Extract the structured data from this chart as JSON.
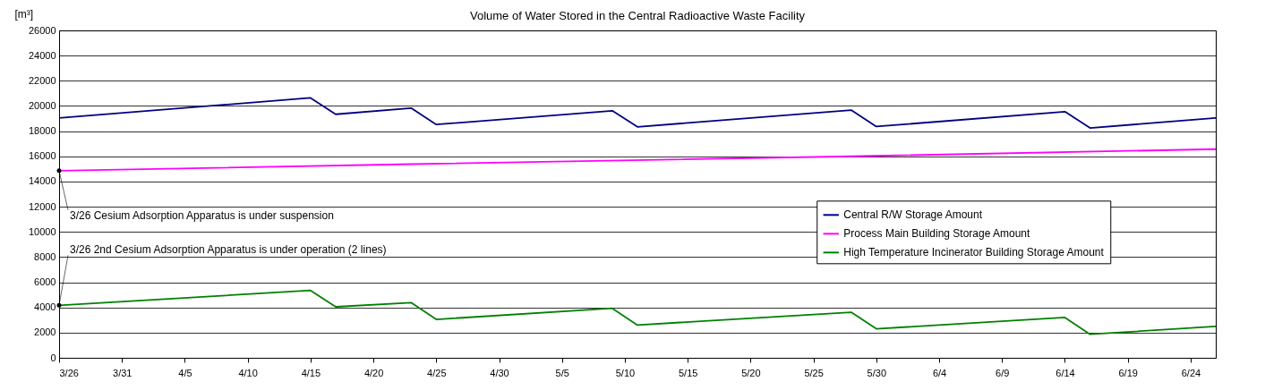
{
  "chart_data": {
    "type": "line",
    "title": "Volume of Water Stored in the Central Radioactive Waste Facility",
    "ylabel": "[m³]",
    "x": [
      "--03-26",
      "--04-15",
      "--04-17",
      "--04-23",
      "--04-25",
      "--05-09",
      "--05-11",
      "--05-28",
      "--05-30",
      "--06-14",
      "--06-16",
      "--06-26"
    ],
    "series": [
      {
        "name": "Central R/W Storage Amount",
        "color": "#000080",
        "values": [
          19050,
          20640,
          19340,
          19830,
          18530,
          19620,
          18340,
          19670,
          18370,
          19550,
          18250,
          19050
        ]
      },
      {
        "name": "Process Main Building Storage Amount",
        "color": "#ff00ff",
        "x": [
          "--03-26",
          "--04-23",
          "--05-28",
          "--06-26"
        ],
        "values": [
          14860,
          15380,
          16000,
          16570
        ]
      },
      {
        "name": "High Temperature Incinerator Building Storage Amount",
        "color": "#008000",
        "values": [
          4170,
          5350,
          4050,
          4380,
          3050,
          3930,
          2600,
          3620,
          2300,
          3200,
          1870,
          2490
        ]
      }
    ],
    "xlim": [
      "--03-26",
      "--06-26"
    ],
    "xticks": [
      {
        "value": "--03-26",
        "label": "3/26"
      },
      {
        "value": "--03-31",
        "label": "3/31"
      },
      {
        "value": "--04-05",
        "label": "4/5"
      },
      {
        "value": "--04-10",
        "label": "4/10"
      },
      {
        "value": "--04-15",
        "label": "4/15"
      },
      {
        "value": "--04-20",
        "label": "4/20"
      },
      {
        "value": "--04-25",
        "label": "4/25"
      },
      {
        "value": "--04-30",
        "label": "4/30"
      },
      {
        "value": "--05-05",
        "label": "5/5"
      },
      {
        "value": "--05-10",
        "label": "5/10"
      },
      {
        "value": "--05-15",
        "label": "5/15"
      },
      {
        "value": "--05-20",
        "label": "5/20"
      },
      {
        "value": "--05-25",
        "label": "5/25"
      },
      {
        "value": "--05-30",
        "label": "5/30"
      },
      {
        "value": "--06-04",
        "label": "6/4"
      },
      {
        "value": "--06-09",
        "label": "6/9"
      },
      {
        "value": "--06-14",
        "label": "6/14"
      },
      {
        "value": "--06-19",
        "label": "6/19"
      },
      {
        "value": "--06-24",
        "label": "6/24"
      }
    ],
    "ylim": [
      0,
      26000
    ],
    "yticks": [
      0,
      2000,
      4000,
      6000,
      8000,
      10000,
      12000,
      14000,
      16000,
      18000,
      20000,
      22000,
      24000,
      26000
    ],
    "grid": "y",
    "legend": "right",
    "marker": "none",
    "line_style": "solid",
    "annotations": [
      {
        "text": "3/26 Cesium Adsorption Apparatus is under suspension",
        "x": "--03-26",
        "y": 14860
      },
      {
        "text": "3/26 2nd Cesium Adsorption Apparatus is under operation (2 lines)",
        "x": "--03-26",
        "y": 4170
      }
    ]
  }
}
